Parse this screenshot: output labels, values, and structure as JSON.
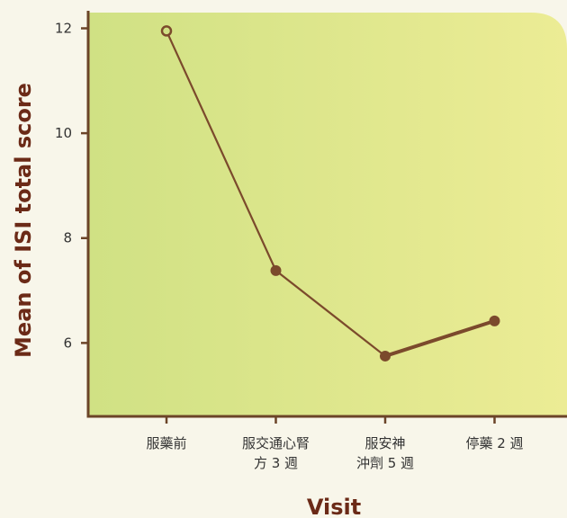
{
  "chart_data": {
    "type": "line",
    "title": "",
    "xlabel": "Visit",
    "ylabel": "Mean of ISI total score",
    "categories": [
      [
        "服藥前"
      ],
      [
        "服交通心腎",
        "方 3 週"
      ],
      [
        "服安神",
        "沖劑 5 週"
      ],
      [
        "停藥 2 週"
      ]
    ],
    "values": [
      11.95,
      7.38,
      5.75,
      6.42
    ],
    "ylim": [
      4.6,
      12.3
    ],
    "yticks": [
      6,
      8,
      10,
      12
    ],
    "grid": false,
    "legend": "none",
    "colors": {
      "line": "#7b4a2c",
      "axis": "#6b4428",
      "axis_title": "#6b2a17",
      "bg_left": "#d0e184",
      "bg_right": "#ecec95",
      "page": "#f8f6ea"
    },
    "markers": [
      "open-circle",
      "filled-circle",
      "filled-circle",
      "filled-circle"
    ]
  }
}
